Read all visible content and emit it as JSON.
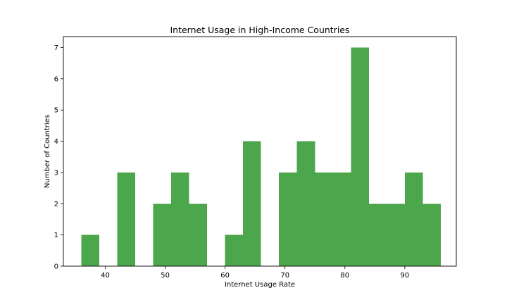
{
  "chart_data": {
    "type": "bar",
    "title": "Internet Usage in High-Income Countries",
    "xlabel": "Internet Usage Rate",
    "ylabel": "Number of Countries",
    "xlim": [
      33.0,
      98.6
    ],
    "ylim": [
      0,
      7.35
    ],
    "xticks": [
      40,
      50,
      60,
      70,
      80,
      90
    ],
    "yticks": [
      0,
      1,
      2,
      3,
      4,
      5,
      6,
      7
    ],
    "bin_edges": [
      36.0,
      39.0,
      42.0,
      45.0,
      48.0,
      51.0,
      54.0,
      57.0,
      60.0,
      63.0,
      66.0,
      69.0,
      72.0,
      75.0,
      78.0,
      81.0,
      84.0,
      87.0,
      90.0,
      93.0,
      96.0
    ],
    "values": [
      1,
      0,
      3,
      0,
      2,
      3,
      2,
      0,
      1,
      4,
      0,
      3,
      4,
      3,
      3,
      7,
      2,
      2,
      3,
      2
    ],
    "bar_color": "#4ca64c",
    "grid": false
  }
}
